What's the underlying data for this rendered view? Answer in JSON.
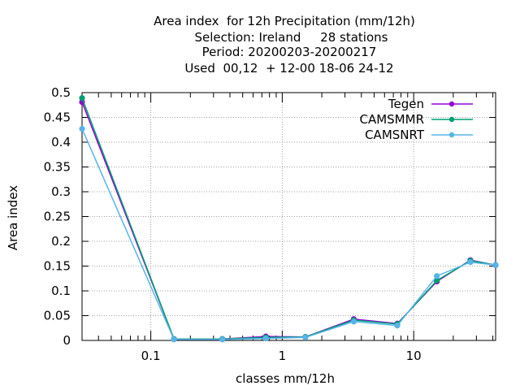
{
  "chart_data": {
    "type": "line",
    "title_lines": [
      "Area index  for 12h Precipitation (mm/12h)",
      "Selection: Ireland     28 stations",
      "Period: 20200203-20200217",
      "Used  00,12  + 12-00 18-06 24-12"
    ],
    "xlabel": "classes mm/12h",
    "ylabel": "Area index",
    "xscale": "log",
    "xlim": [
      0.03,
      42
    ],
    "ylim": [
      0,
      0.5
    ],
    "x_ticks": [
      0.1,
      1,
      10
    ],
    "x_tick_labels": [
      "0.1",
      "1",
      "10"
    ],
    "y_ticks": [
      0,
      0.05,
      0.1,
      0.15,
      0.2,
      0.25,
      0.3,
      0.35,
      0.4,
      0.45,
      0.5
    ],
    "y_tick_labels": [
      "0",
      "0.05",
      "0.1",
      "0.15",
      "0.2",
      "0.25",
      "0.3",
      "0.35",
      "0.4",
      "0.45",
      "0.5"
    ],
    "grid": true,
    "legend_position": "top-right",
    "x": [
      0.03,
      0.15,
      0.35,
      0.75,
      1.5,
      3.5,
      7.5,
      15,
      27,
      42
    ],
    "series": [
      {
        "name": "Tegen",
        "color": "#9400d3",
        "values": [
          0.481,
          0.003,
          0.003,
          0.008,
          0.007,
          0.043,
          0.034,
          0.119,
          0.162,
          0.152
        ]
      },
      {
        "name": "CAMSMMR",
        "color": "#009e73",
        "values": [
          0.489,
          0.003,
          0.003,
          0.006,
          0.007,
          0.041,
          0.033,
          0.121,
          0.161,
          0.152
        ]
      },
      {
        "name": "CAMSNRT",
        "color": "#56b4e9",
        "values": [
          0.427,
          0.002,
          0.002,
          0.004,
          0.006,
          0.038,
          0.03,
          0.13,
          0.158,
          0.152
        ]
      }
    ]
  }
}
